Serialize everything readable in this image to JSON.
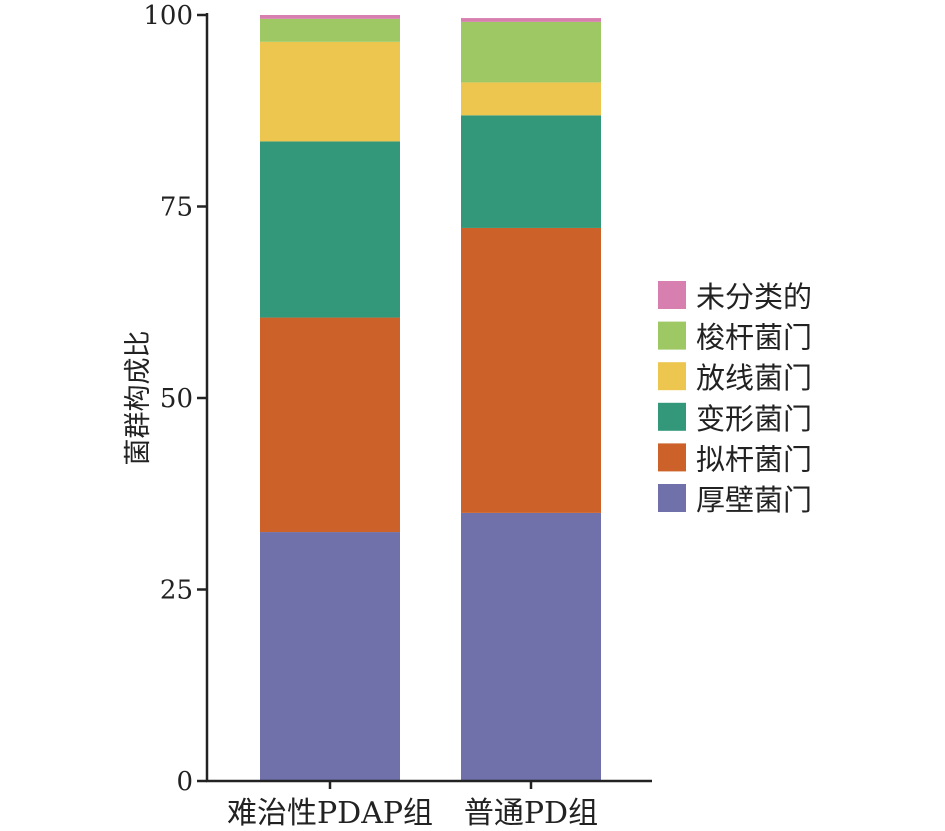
{
  "chart_data": {
    "type": "bar",
    "stacked": true,
    "title": "",
    "xlabel": "",
    "ylabel": "菌群构成比",
    "ylim": [
      0,
      100
    ],
    "yticks": [
      "0",
      "25",
      "50",
      "75",
      "100"
    ],
    "ytick_values": [
      0,
      25,
      50,
      75,
      100
    ],
    "categories": [
      "难治性PDAP组",
      "普通PD组"
    ],
    "series": [
      {
        "name": "厚壁菌门",
        "color": "#7070AA",
        "values": [
          32.5,
          35.0
        ]
      },
      {
        "name": "拟杆菌门",
        "color": "#CC6129",
        "values": [
          28.0,
          37.2
        ]
      },
      {
        "name": "变形菌门",
        "color": "#33977A",
        "values": [
          23.0,
          14.7
        ]
      },
      {
        "name": "放线菌门",
        "color": "#EDC64F",
        "values": [
          13.0,
          4.3
        ]
      },
      {
        "name": "梭杆菌门",
        "color": "#9DC863",
        "values": [
          3.0,
          7.9
        ]
      },
      {
        "name": "未分类的",
        "color": "#D77FAF",
        "values": [
          0.5,
          0.5
        ]
      }
    ],
    "legend": {
      "position": "right",
      "order": [
        "未分类的",
        "梭杆菌门",
        "放线菌门",
        "变形菌门",
        "拟杆菌门",
        "厚壁菌门"
      ]
    },
    "grid": false
  }
}
